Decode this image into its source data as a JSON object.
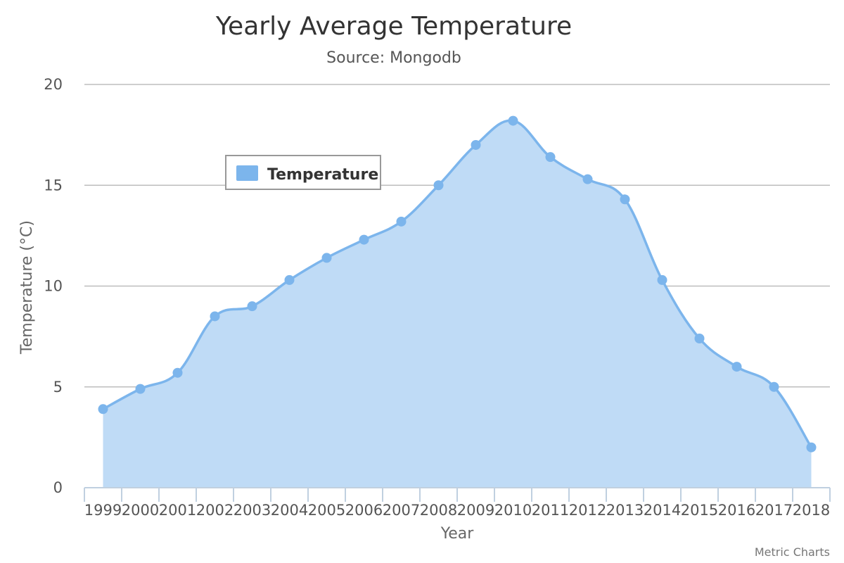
{
  "chart_data": {
    "type": "area",
    "title": "Yearly Average Temperature",
    "subtitle": "Source: Mongodb",
    "xlabel": "Year",
    "ylabel": "Temperature (°C)",
    "categories": [
      "1999",
      "2000",
      "2001",
      "2002",
      "2003",
      "2004",
      "2005",
      "2006",
      "2007",
      "2008",
      "2009",
      "2010",
      "2011",
      "2012",
      "2013",
      "2014",
      "2015",
      "2016",
      "2017",
      "2018"
    ],
    "series": [
      {
        "name": "Temperature",
        "values": [
          3.9,
          4.9,
          5.7,
          8.5,
          9.0,
          10.3,
          11.4,
          12.3,
          13.2,
          15.0,
          17.0,
          18.2,
          16.4,
          15.3,
          14.3,
          10.3,
          7.4,
          6.0,
          5.0,
          2.0
        ]
      }
    ],
    "ylim": [
      0,
      20
    ],
    "yticks": [
      "0",
      "5",
      "10",
      "15",
      "20"
    ],
    "grid": true,
    "legend": "top-left",
    "colors": {
      "line": "#7cb5ec",
      "fill": "#bfdbf6",
      "marker": "#7cb5ec",
      "grid": "#bdbdbd",
      "axis": "#c0d0e0"
    },
    "credits": "Metric Charts"
  }
}
